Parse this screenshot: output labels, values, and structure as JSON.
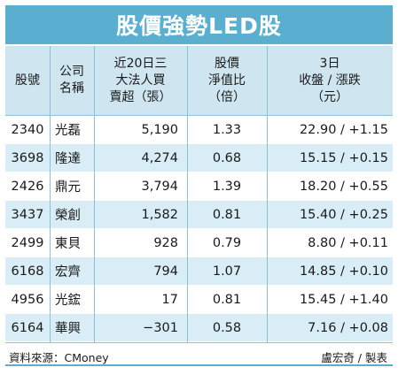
{
  "title": "股價強勢LED股",
  "columns": [
    {
      "lines": [
        "股號"
      ]
    },
    {
      "lines": [
        "公司",
        "名稱"
      ]
    },
    {
      "lines": [
        "近20日三",
        "大法人買",
        "賣超（張）"
      ]
    },
    {
      "lines": [
        "股價",
        "淨值比",
        "（倍）"
      ]
    },
    {
      "lines": [
        "3日",
        "收盤 / 漲跌",
        "（元）"
      ]
    }
  ],
  "rows": [
    {
      "code": "2340",
      "name": "光磊",
      "net_buy": "5,190",
      "pb": "1.33",
      "price_change": "22.90 / +1.15"
    },
    {
      "code": "3698",
      "name": "隆達",
      "net_buy": "4,274",
      "pb": "0.68",
      "price_change": "15.15 / +0.15"
    },
    {
      "code": "2426",
      "name": "鼎元",
      "net_buy": "3,794",
      "pb": "1.39",
      "price_change": "18.20 / +0.55"
    },
    {
      "code": "3437",
      "name": "榮創",
      "net_buy": "1,582",
      "pb": "0.81",
      "price_change": "15.40 / +0.25"
    },
    {
      "code": "2499",
      "name": "東貝",
      "net_buy": "928",
      "pb": "0.79",
      "price_change": "8.80 / +0.11"
    },
    {
      "code": "6168",
      "name": "宏齊",
      "net_buy": "794",
      "pb": "1.07",
      "price_change": "14.85 / +0.10"
    },
    {
      "code": "4956",
      "name": "光鋐",
      "net_buy": "17",
      "pb": "0.81",
      "price_change": "15.45 / +1.40"
    },
    {
      "code": "6164",
      "name": "華興",
      "net_buy": "−301",
      "pb": "0.58",
      "price_change": "7.16 / +0.08"
    }
  ],
  "footer": {
    "source": "資料來源：CMoney",
    "credit": "盧宏奇 / 製表"
  },
  "colors": {
    "title_bg": "#5aaed0",
    "header_bg": "#cfe6f1",
    "alt_row_bg": "#d8edf5"
  }
}
